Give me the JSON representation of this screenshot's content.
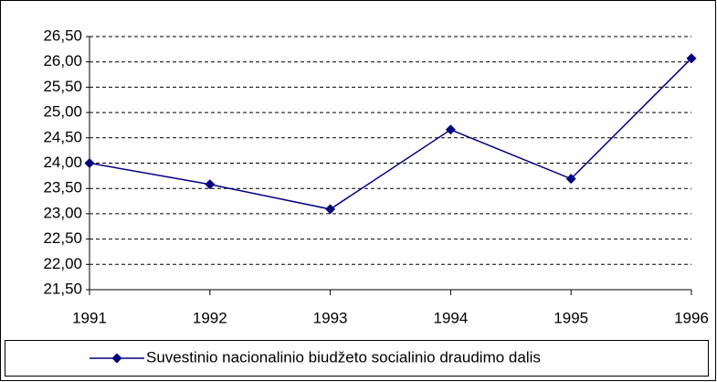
{
  "chart_data": {
    "type": "line",
    "categories": [
      "1991",
      "1992",
      "1993",
      "1994",
      "1995",
      "1996"
    ],
    "series": [
      {
        "name": "Suvestinio nacionalinio biudžeto socialinio draudimo dalis",
        "color": "#000080",
        "values": [
          24.0,
          23.58,
          23.09,
          24.66,
          23.69,
          26.07
        ]
      }
    ],
    "ylim": [
      21.5,
      26.5
    ],
    "yticks": [
      {
        "value": 21.5,
        "label": "21,50"
      },
      {
        "value": 22,
        "label": "22,00"
      },
      {
        "value": 22.5,
        "label": "22,50"
      },
      {
        "value": 23,
        "label": "23,00"
      },
      {
        "value": 23.5,
        "label": "23,50"
      },
      {
        "value": 24,
        "label": "24,00"
      },
      {
        "value": 24.5,
        "label": "24,50"
      },
      {
        "value": 25,
        "label": "25,00"
      },
      {
        "value": 25.5,
        "label": "25,50"
      },
      {
        "value": 26,
        "label": "26,00"
      },
      {
        "value": 26.5,
        "label": "26,50"
      }
    ],
    "grid": true,
    "legend": "bottom"
  }
}
